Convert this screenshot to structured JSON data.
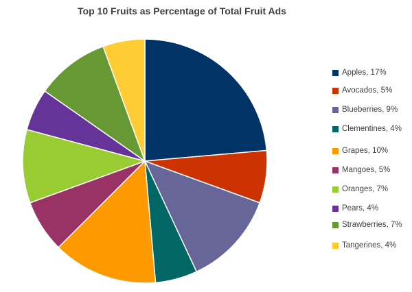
{
  "chart_data": {
    "type": "pie",
    "title": "Top 10 Fruits as Percentage of Total Fruit Ads",
    "legend_position": "right",
    "slices": [
      {
        "name": "Apples",
        "value": 17,
        "label": "Apples, 17%",
        "color": "#003366"
      },
      {
        "name": "Avocados",
        "value": 5,
        "label": "Avocados, 5%",
        "color": "#cc3300"
      },
      {
        "name": "Blueberries",
        "value": 9,
        "label": "Blueberries, 9%",
        "color": "#666699"
      },
      {
        "name": "Clementines",
        "value": 4,
        "label": "Clementines, 4%",
        "color": "#006666"
      },
      {
        "name": "Grapes",
        "value": 10,
        "label": "Grapes, 10%",
        "color": "#ff9900"
      },
      {
        "name": "Mangoes",
        "value": 5,
        "label": "Mangoes, 5%",
        "color": "#993366"
      },
      {
        "name": "Oranges",
        "value": 7,
        "label": "Oranges, 7%",
        "color": "#99cc33"
      },
      {
        "name": "Pears",
        "value": 4,
        "label": "Pears, 4%",
        "color": "#663399"
      },
      {
        "name": "Strawberries",
        "value": 7,
        "label": "Strawberries, 7%",
        "color": "#669933"
      },
      {
        "name": "Tangerines",
        "value": 4,
        "label": "Tangerines, 4%",
        "color": "#ffcc33"
      }
    ]
  }
}
